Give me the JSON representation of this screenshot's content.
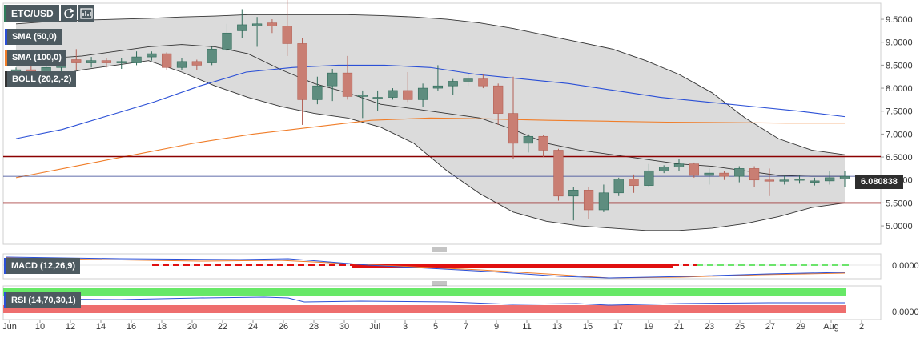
{
  "toolbar": {
    "pair": "ETC/USD",
    "icons": [
      "refresh-icon",
      "chart-type-icon"
    ]
  },
  "legends": {
    "sma50": "SMA (50,0)",
    "sma100": "SMA (100,0)",
    "boll": "BOLL (20,2,-2)",
    "macd": "MACD (12,26,9)",
    "rsi": "RSI (14,70,30,1)"
  },
  "colors": {
    "up": "#5e8d7f",
    "down": "#c97e73",
    "sma50": "#2a4fd6",
    "sma100": "#f07d29",
    "boll_fill": "#d5d5d5",
    "boll_line": "#333333",
    "level": "#8b0000",
    "macd_signal": "#e01010",
    "macd_hist_pos": "#3cdc3c",
    "rsi_upper": "#67e867",
    "rsi_lower": "#ee6e6e"
  },
  "current_price": "6.080838",
  "chart_data": {
    "type": "candlestick",
    "ylim": [
      4.6,
      9.85
    ],
    "price_ticks": [
      "9.5000",
      "9.0000",
      "8.5000",
      "8.0000",
      "7.5000",
      "7.0000",
      "6.5000",
      "6.0000",
      "5.5000",
      "5.0000"
    ],
    "x_labels": [
      "Jun",
      "10",
      "12",
      "14",
      "16",
      "18",
      "20",
      "22",
      "24",
      "26",
      "28",
      "30",
      "Jul",
      "3",
      "5",
      "7",
      "9",
      "11",
      "13",
      "15",
      "17",
      "19",
      "21",
      "23",
      "25",
      "27",
      "29",
      "Aug",
      "2"
    ],
    "horizontal_levels": [
      6.51,
      5.5
    ],
    "current_price_line": 6.08,
    "candles": [
      {
        "date": "Jun 8",
        "o": 8.3,
        "h": 8.45,
        "l": 8.15,
        "c": 8.4
      },
      {
        "date": "Jun 9",
        "o": 8.4,
        "h": 8.55,
        "l": 8.2,
        "c": 8.3
      },
      {
        "date": "Jun 10",
        "o": 8.3,
        "h": 8.5,
        "l": 8.2,
        "c": 8.45
      },
      {
        "date": "Jun 11",
        "o": 8.45,
        "h": 8.7,
        "l": 8.35,
        "c": 8.62
      },
      {
        "date": "Jun 12",
        "o": 8.62,
        "h": 8.85,
        "l": 8.4,
        "c": 8.55
      },
      {
        "date": "Jun 13",
        "o": 8.55,
        "h": 8.68,
        "l": 8.45,
        "c": 8.6
      },
      {
        "date": "Jun 14",
        "o": 8.6,
        "h": 8.65,
        "l": 8.45,
        "c": 8.55
      },
      {
        "date": "Jun 15",
        "o": 8.55,
        "h": 8.65,
        "l": 8.42,
        "c": 8.58
      },
      {
        "date": "Jun 16",
        "o": 8.55,
        "h": 8.8,
        "l": 8.5,
        "c": 8.68
      },
      {
        "date": "Jun 17",
        "o": 8.68,
        "h": 8.8,
        "l": 8.6,
        "c": 8.75
      },
      {
        "date": "Jun 18",
        "o": 8.75,
        "h": 8.78,
        "l": 8.4,
        "c": 8.45
      },
      {
        "date": "Jun 19",
        "o": 8.45,
        "h": 8.65,
        "l": 8.4,
        "c": 8.58
      },
      {
        "date": "Jun 20",
        "o": 8.58,
        "h": 8.62,
        "l": 8.4,
        "c": 8.5
      },
      {
        "date": "Jun 21",
        "o": 8.55,
        "h": 8.9,
        "l": 8.5,
        "c": 8.85
      },
      {
        "date": "Jun 22",
        "o": 8.85,
        "h": 9.4,
        "l": 8.8,
        "c": 9.2
      },
      {
        "date": "Jun 23",
        "o": 9.25,
        "h": 9.72,
        "l": 9.1,
        "c": 9.38
      },
      {
        "date": "Jun 24",
        "o": 9.35,
        "h": 9.55,
        "l": 8.9,
        "c": 9.4
      },
      {
        "date": "Jun 25",
        "o": 9.42,
        "h": 9.5,
        "l": 9.2,
        "c": 9.35
      },
      {
        "date": "Jun 26",
        "o": 9.35,
        "h": 9.95,
        "l": 8.7,
        "c": 8.97
      },
      {
        "date": "Jun 27",
        "o": 8.97,
        "h": 9.1,
        "l": 7.2,
        "c": 7.75
      },
      {
        "date": "Jun 28",
        "o": 7.75,
        "h": 8.25,
        "l": 7.65,
        "c": 8.05
      },
      {
        "date": "Jun 29",
        "o": 8.05,
        "h": 8.42,
        "l": 7.72,
        "c": 8.33
      },
      {
        "date": "Jun 30",
        "o": 8.33,
        "h": 8.7,
        "l": 7.75,
        "c": 7.82
      },
      {
        "date": "Jul 1",
        "o": 7.82,
        "h": 7.95,
        "l": 7.35,
        "c": 7.85
      },
      {
        "date": "Jul 2",
        "o": 7.78,
        "h": 7.95,
        "l": 7.5,
        "c": 7.8
      },
      {
        "date": "Jul 3",
        "o": 7.8,
        "h": 8.0,
        "l": 7.75,
        "c": 7.95
      },
      {
        "date": "Jul 4",
        "o": 7.95,
        "h": 8.35,
        "l": 7.7,
        "c": 7.75
      },
      {
        "date": "Jul 5",
        "o": 7.75,
        "h": 8.1,
        "l": 7.6,
        "c": 8.0
      },
      {
        "date": "Jul 6",
        "o": 8.0,
        "h": 8.5,
        "l": 7.95,
        "c": 8.05
      },
      {
        "date": "Jul 7",
        "o": 8.05,
        "h": 8.2,
        "l": 7.85,
        "c": 8.15
      },
      {
        "date": "Jul 8",
        "o": 8.15,
        "h": 8.3,
        "l": 8.05,
        "c": 8.2
      },
      {
        "date": "Jul 9",
        "o": 8.2,
        "h": 8.3,
        "l": 8.0,
        "c": 8.05
      },
      {
        "date": "Jul 10",
        "o": 8.05,
        "h": 8.1,
        "l": 7.2,
        "c": 7.45
      },
      {
        "date": "Jul 11",
        "o": 7.45,
        "h": 8.25,
        "l": 6.45,
        "c": 6.8
      },
      {
        "date": "Jul 12",
        "o": 6.8,
        "h": 7.0,
        "l": 6.6,
        "c": 6.95
      },
      {
        "date": "Jul 13",
        "o": 6.95,
        "h": 6.98,
        "l": 6.5,
        "c": 6.65
      },
      {
        "date": "Jul 14",
        "o": 6.65,
        "h": 6.68,
        "l": 5.55,
        "c": 5.65
      },
      {
        "date": "Jul 15",
        "o": 5.65,
        "h": 5.85,
        "l": 5.12,
        "c": 5.78
      },
      {
        "date": "Jul 16",
        "o": 5.78,
        "h": 5.85,
        "l": 5.15,
        "c": 5.35
      },
      {
        "date": "Jul 17",
        "o": 5.35,
        "h": 5.9,
        "l": 5.3,
        "c": 5.72
      },
      {
        "date": "Jul 18",
        "o": 5.72,
        "h": 6.05,
        "l": 5.65,
        "c": 6.02
      },
      {
        "date": "Jul 19",
        "o": 6.02,
        "h": 6.12,
        "l": 5.72,
        "c": 5.88
      },
      {
        "date": "Jul 20",
        "o": 5.88,
        "h": 6.35,
        "l": 5.85,
        "c": 6.2
      },
      {
        "date": "Jul 21",
        "o": 6.2,
        "h": 6.32,
        "l": 6.15,
        "c": 6.28
      },
      {
        "date": "Jul 22",
        "o": 6.28,
        "h": 6.45,
        "l": 6.2,
        "c": 6.35
      },
      {
        "date": "Jul 23",
        "o": 6.35,
        "h": 6.38,
        "l": 6.05,
        "c": 6.1
      },
      {
        "date": "Jul 24",
        "o": 6.1,
        "h": 6.25,
        "l": 5.9,
        "c": 6.15
      },
      {
        "date": "Jul 25",
        "o": 6.15,
        "h": 6.2,
        "l": 6.0,
        "c": 6.08
      },
      {
        "date": "Jul 26",
        "o": 6.08,
        "h": 6.3,
        "l": 5.95,
        "c": 6.25
      },
      {
        "date": "Jul 27",
        "o": 6.25,
        "h": 6.3,
        "l": 5.85,
        "c": 6.0
      },
      {
        "date": "Jul 28",
        "o": 6.0,
        "h": 6.25,
        "l": 5.65,
        "c": 5.98
      },
      {
        "date": "Jul 29",
        "o": 5.98,
        "h": 6.1,
        "l": 5.9,
        "c": 6.0
      },
      {
        "date": "Jul 30",
        "o": 6.0,
        "h": 6.1,
        "l": 5.92,
        "c": 6.02
      },
      {
        "date": "Jul 31",
        "o": 5.95,
        "h": 6.05,
        "l": 5.88,
        "c": 5.98
      },
      {
        "date": "Aug 1",
        "o": 5.98,
        "h": 6.2,
        "l": 5.9,
        "c": 6.05
      },
      {
        "date": "Aug 2",
        "o": 6.02,
        "h": 6.2,
        "l": 5.85,
        "c": 6.08
      }
    ],
    "boll_upper": [
      9.4,
      9.45,
      9.48,
      9.5,
      9.52,
      9.55,
      9.57,
      9.6,
      9.6,
      9.6,
      9.6,
      9.58,
      9.55,
      9.5,
      9.42,
      9.3,
      9.15,
      9.0,
      8.85,
      8.6,
      8.3,
      7.9,
      7.35,
      6.9,
      6.65,
      6.55
    ],
    "boll_middle": [
      8.6,
      8.65,
      8.7,
      8.8,
      8.9,
      8.95,
      8.9,
      8.75,
      8.4,
      8.1,
      7.9,
      7.65,
      7.55,
      7.45,
      7.35,
      7.1,
      6.8,
      6.65,
      6.55,
      6.45,
      6.35,
      6.3,
      6.2,
      6.1,
      6.08,
      6.08
    ],
    "boll_lower": [
      8.1,
      8.25,
      8.4,
      8.5,
      8.6,
      8.35,
      8.05,
      7.8,
      7.6,
      7.45,
      7.35,
      7.15,
      6.8,
      6.2,
      5.7,
      5.3,
      5.1,
      5.0,
      4.95,
      4.9,
      4.9,
      4.95,
      5.05,
      5.2,
      5.4,
      5.5
    ],
    "sma50": [
      6.9,
      7.1,
      7.4,
      7.7,
      8.05,
      8.35,
      8.45,
      8.5,
      8.5,
      8.45,
      8.3,
      8.2,
      8.1,
      7.95,
      7.8,
      7.7,
      7.6,
      7.5,
      7.38
    ],
    "sma100": [
      6.05,
      6.3,
      6.55,
      6.8,
      7.0,
      7.15,
      7.3,
      7.35,
      7.33,
      7.3,
      7.28,
      7.26,
      7.25,
      7.24,
      7.24
    ],
    "macd": {
      "zero_label": "0.0000"
    },
    "rsi": {
      "zero_label": "0.0000"
    }
  }
}
